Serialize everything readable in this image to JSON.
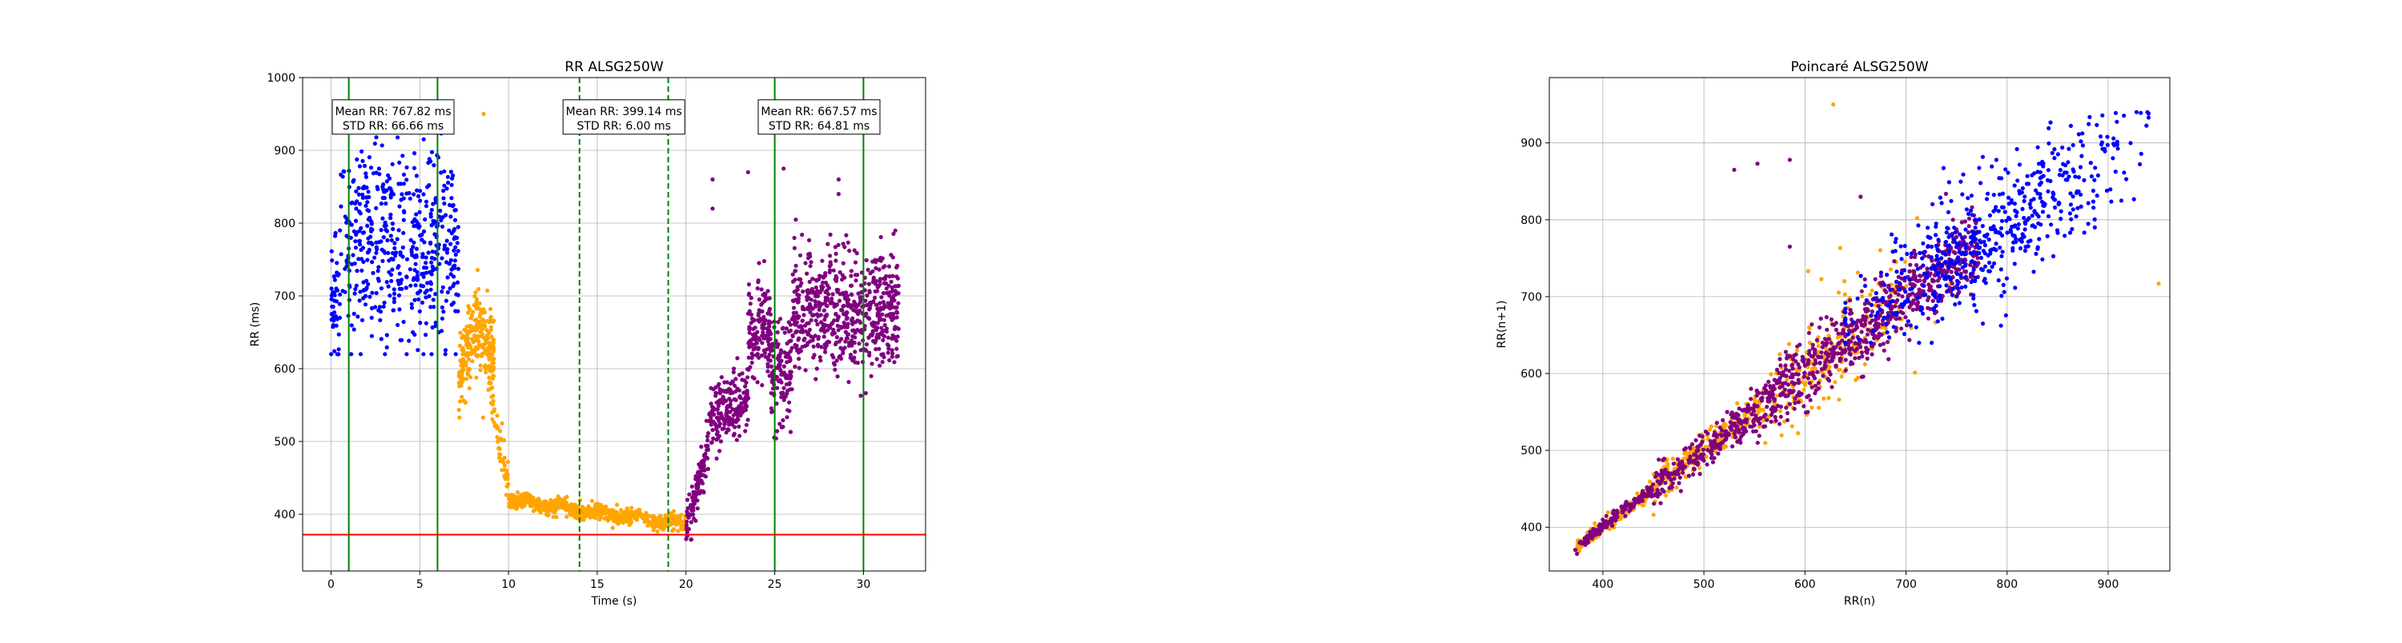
{
  "colors": {
    "group_blue": "#0000ff",
    "group_orange": "#ffa500",
    "group_purple": "#800080",
    "segment_line": "#008000",
    "threshold_line": "#ff0000"
  },
  "chart_data": [
    {
      "type": "scatter",
      "title": "RR ALSG250W",
      "xlabel": "Time (s)",
      "ylabel": "RR (ms)",
      "xlim": [
        -1.6,
        33.5
      ],
      "ylim": [
        322,
        1000
      ],
      "xticks": [
        0,
        5,
        10,
        15,
        20,
        25,
        30
      ],
      "yticks": [
        400,
        500,
        600,
        700,
        800,
        900,
        1000
      ],
      "grid": true,
      "vertical_lines": [
        {
          "x": 1,
          "style": "solid",
          "color": "green"
        },
        {
          "x": 6,
          "style": "solid",
          "color": "green"
        },
        {
          "x": 14,
          "style": "dashed",
          "color": "green"
        },
        {
          "x": 19,
          "style": "dashed",
          "color": "green"
        },
        {
          "x": 25,
          "style": "solid",
          "color": "green"
        },
        {
          "x": 30,
          "style": "solid",
          "color": "green"
        }
      ],
      "horizontal_lines": [
        {
          "y": 372,
          "color": "red"
        }
      ],
      "annotations": [
        {
          "x": 3.5,
          "y": 942,
          "line1": "Mean RR: 767.82 ms",
          "line2": "STD RR: 66.66 ms"
        },
        {
          "x": 16.5,
          "y": 942,
          "line1": "Mean RR: 399.14 ms",
          "line2": "STD RR: 6.00 ms"
        },
        {
          "x": 27.5,
          "y": 942,
          "line1": "Mean RR: 667.57 ms",
          "line2": "STD RR: 64.81 ms"
        }
      ],
      "groups": [
        {
          "color": "blue",
          "desc_range": [
            0,
            7.2
          ],
          "mean": 765,
          "spread": 68
        },
        {
          "color": "orange",
          "desc_range": [
            7.2,
            20
          ],
          "shape": "decay-from-650-to-385",
          "outlier": [
            8.6,
            950
          ]
        },
        {
          "color": "purple",
          "desc_range": [
            20,
            32
          ],
          "shape": "rise-from-375-to-680"
        }
      ]
    },
    {
      "type": "scatter",
      "title": "Poincaré ALSG250W",
      "xlabel": "RR(n)",
      "ylabel": "RR(n+1)",
      "xlim": [
        347,
        961
      ],
      "ylim": [
        343,
        985
      ],
      "xticks": [
        400,
        500,
        600,
        700,
        800,
        900
      ],
      "yticks": [
        400,
        500,
        600,
        700,
        800,
        900
      ],
      "grid": true,
      "groups": [
        {
          "color": "blue",
          "center": [
            790,
            790
          ],
          "spread": 70
        },
        {
          "color": "orange",
          "range": [
            375,
            720
          ],
          "outliers": [
            [
              628,
              950
            ],
            [
              950,
              717
            ]
          ]
        },
        {
          "color": "purple",
          "range": [
            375,
            770
          ]
        }
      ]
    }
  ]
}
